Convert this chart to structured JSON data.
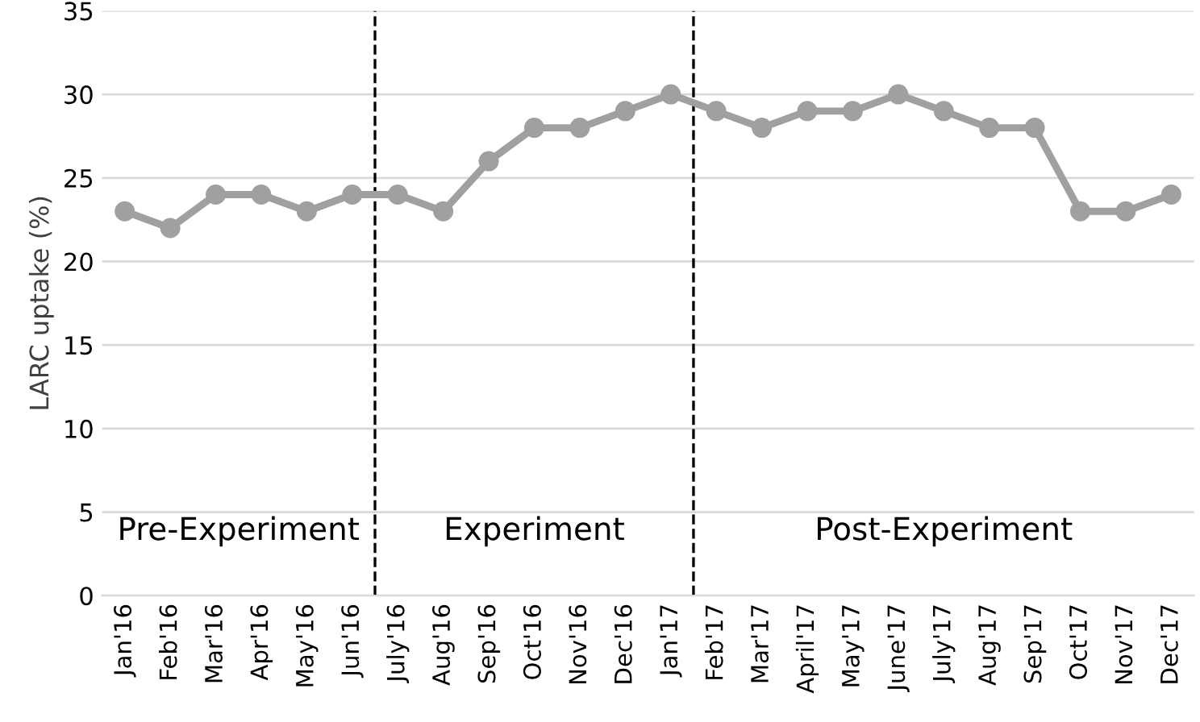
{
  "chart_data": {
    "type": "line",
    "ylabel": "LARC uptake (%)",
    "categories": [
      "Jan'16",
      "Feb'16",
      "Mar'16",
      "Apr'16",
      "May'16",
      "Jun'16",
      "July'16",
      "Aug'16",
      "Sep'16",
      "Oct'16",
      "Nov'16",
      "Dec'16",
      "Jan'17",
      "Feb'17",
      "Mar'17",
      "April'17",
      "May'17",
      "June'17",
      "July'17",
      "Aug'17",
      "Sep'17",
      "Oct'17",
      "Nov'17",
      "Dec'17"
    ],
    "series": [
      {
        "color": "#a0a0a0",
        "values": [
          23,
          22,
          24,
          24,
          23,
          24,
          24,
          23,
          26,
          28,
          28,
          29,
          30,
          29,
          28,
          29,
          29,
          30,
          29,
          28,
          28,
          23,
          23,
          24
        ]
      }
    ],
    "ylim": [
      0,
      35
    ],
    "yticks": [
      0,
      5,
      10,
      15,
      20,
      25,
      30,
      35
    ],
    "grid": "y",
    "marker": "circle",
    "line_style": "solid",
    "legend": false,
    "annotations": [
      "Pre-Experiment",
      "Experiment",
      "Post-Experiment"
    ]
  }
}
